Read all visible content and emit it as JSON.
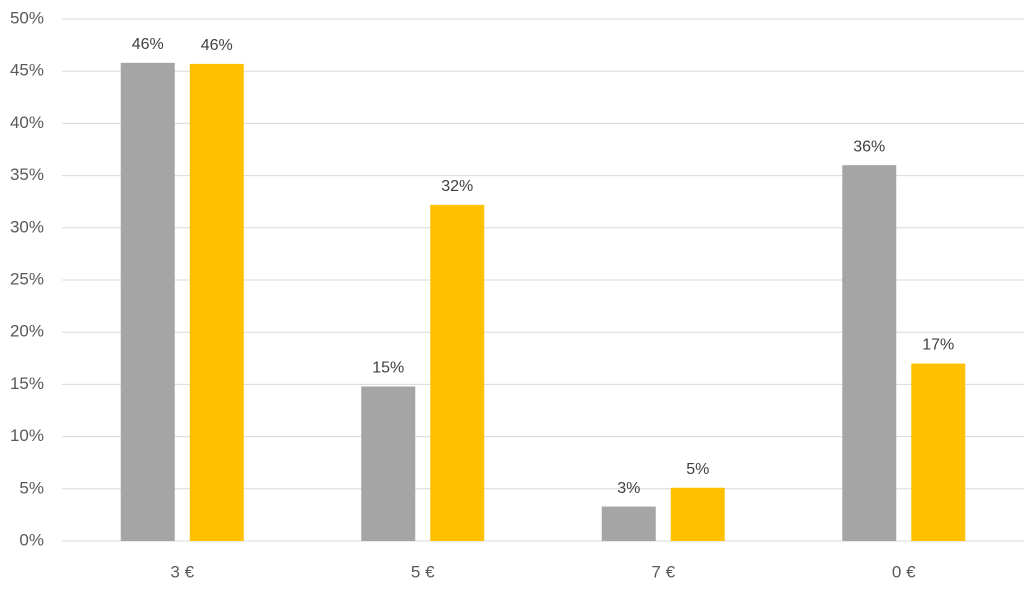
{
  "chart_data": {
    "type": "bar",
    "categories": [
      "3 €",
      "5 €",
      "7 €",
      "0 €"
    ],
    "series": [
      {
        "color": "#a5a5a5",
        "values": [
          45.8,
          14.8,
          3.3,
          36.0
        ],
        "value_labels": [
          "46%",
          "15%",
          "3%",
          "36%"
        ]
      },
      {
        "color": "#ffc000",
        "values": [
          45.7,
          32.2,
          5.1,
          17.0
        ],
        "value_labels": [
          "46%",
          "32%",
          "5%",
          "17%"
        ]
      }
    ],
    "ylim": [
      0,
      50
    ],
    "yticks": [
      {
        "value": 0,
        "label": "0%"
      },
      {
        "value": 5,
        "label": "5%"
      },
      {
        "value": 10,
        "label": "10%"
      },
      {
        "value": 15,
        "label": "15%"
      },
      {
        "value": 20,
        "label": "20%"
      },
      {
        "value": 25,
        "label": "25%"
      },
      {
        "value": 30,
        "label": "30%"
      },
      {
        "value": 35,
        "label": "35%"
      },
      {
        "value": 40,
        "label": "40%"
      },
      {
        "value": 45,
        "label": "45%"
      },
      {
        "value": 50,
        "label": "50%"
      }
    ],
    "grid": true
  }
}
